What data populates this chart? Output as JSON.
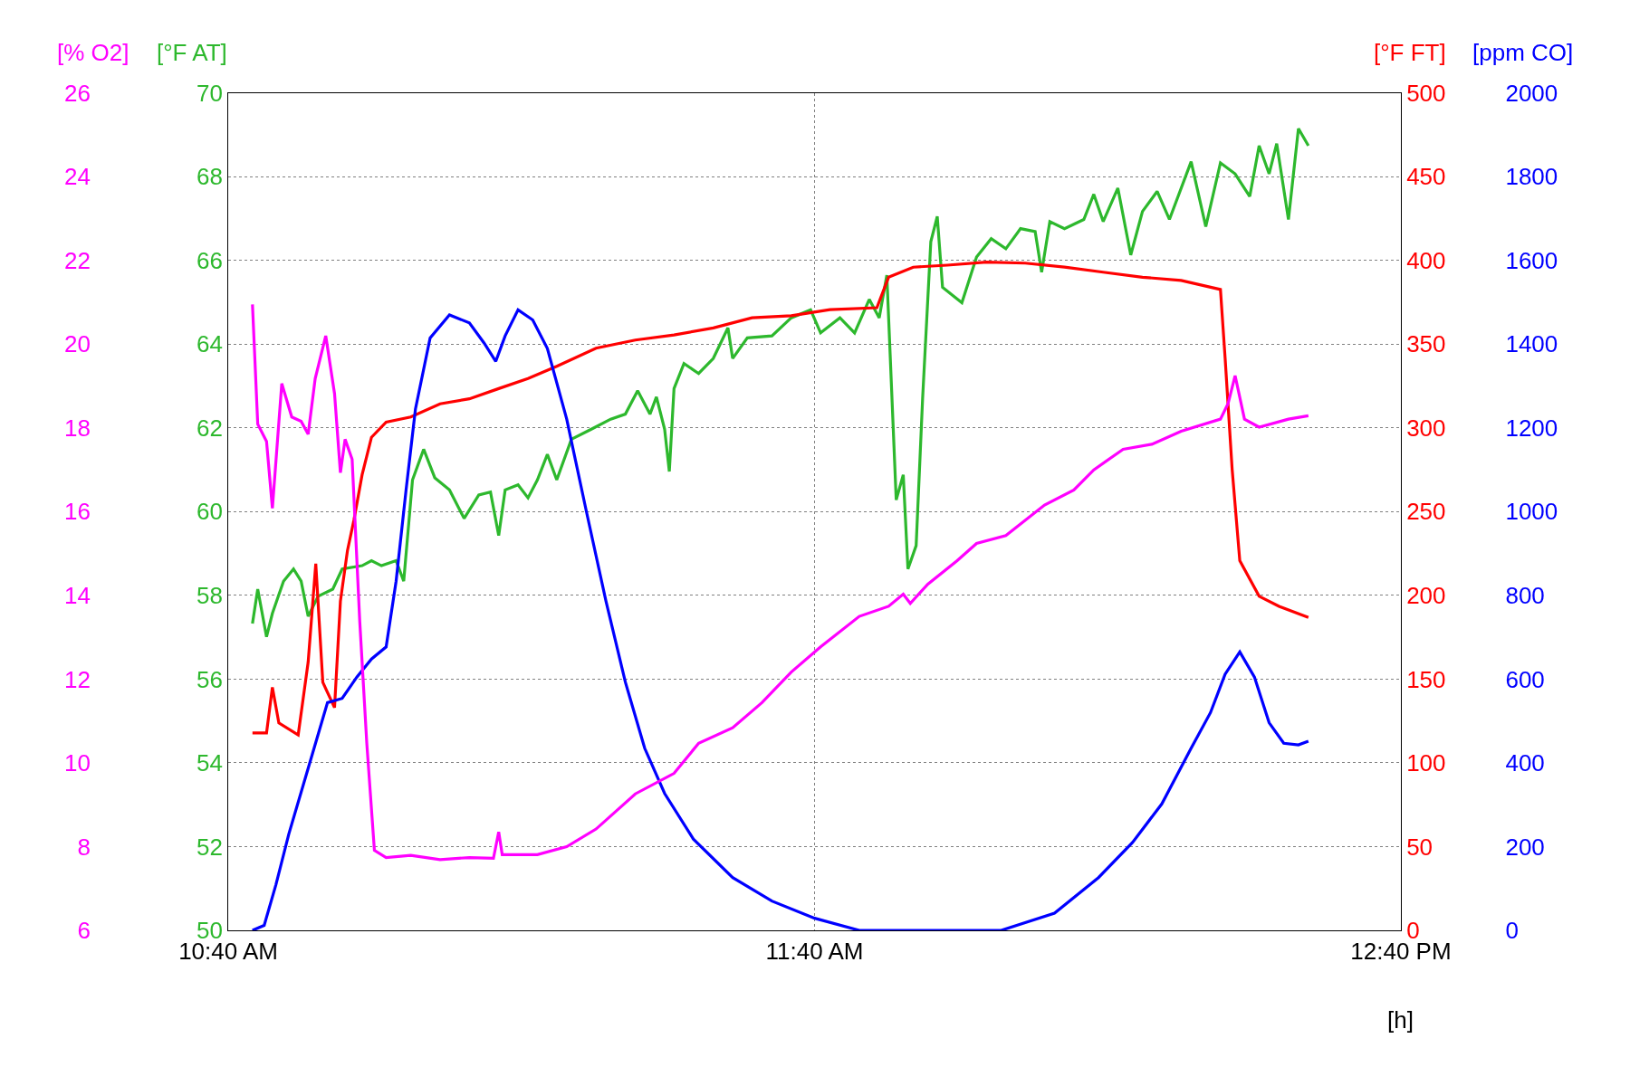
{
  "chart_data": [
    {
      "type": "line",
      "xlabel": "[h]",
      "ylabel": "[°F AT]",
      "y2label": "[°F FT]",
      "y3label": "[ppm CO]",
      "xlim": [
        10.6667,
        12.6667
      ],
      "xticks": [
        {
          "value": 10.6667,
          "label": "10:40 AM"
        },
        {
          "value": 11.6667,
          "label": "11:40 AM"
        },
        {
          "value": 12.6667,
          "label": "12:40 PM"
        }
      ],
      "ylim": [
        50,
        70
      ],
      "yticks": [
        50,
        52,
        54,
        56,
        58,
        60,
        62,
        64,
        66,
        68,
        70
      ],
      "y2lim": [
        0,
        500
      ],
      "y2ticks": [
        0,
        50,
        100,
        150,
        200,
        250,
        300,
        350,
        400,
        450,
        500
      ],
      "y3lim": [
        0,
        2000
      ],
      "y3ticks": [
        0,
        200,
        400,
        600,
        800,
        1000,
        1200,
        1400,
        1600,
        1800,
        2000
      ],
      "grid": true,
      "marker": "none",
      "line_style": "solid",
      "series": [
        {
          "color": "#2db82d",
          "x": [
            10.708,
            10.717,
            10.732,
            10.742,
            10.761,
            10.778,
            10.791,
            10.803,
            10.82,
            10.845,
            10.861,
            10.895,
            10.911,
            10.928,
            10.953,
            10.966,
            10.981,
            11.0,
            11.019,
            11.044,
            11.069,
            11.094,
            11.114,
            11.128,
            11.139,
            11.161,
            11.178,
            11.194,
            11.211,
            11.227,
            11.252,
            11.286,
            11.319,
            11.344,
            11.365,
            11.386,
            11.397,
            11.411,
            11.419,
            11.427,
            11.444,
            11.469,
            11.494,
            11.519,
            11.527,
            11.552,
            11.594,
            11.627,
            11.66,
            11.677,
            11.71,
            11.735,
            11.76,
            11.777,
            11.79,
            11.806,
            11.818,
            11.826,
            11.84,
            11.851,
            11.865,
            11.876,
            11.885,
            11.918,
            11.943,
            11.968,
            11.993,
            12.018,
            12.043,
            12.054,
            12.068,
            12.093,
            12.126,
            12.143,
            12.159,
            12.184,
            12.206,
            12.226,
            12.251,
            12.272,
            12.309,
            12.334,
            12.359,
            12.384,
            12.409,
            12.425,
            12.442,
            12.455,
            12.475,
            12.492,
            12.509
          ],
          "values": [
            57.33,
            58.15,
            57.01,
            57.57,
            58.34,
            58.63,
            58.34,
            57.5,
            57.98,
            58.15,
            58.63,
            58.71,
            58.83,
            58.71,
            58.83,
            58.34,
            60.76,
            61.49,
            60.81,
            60.52,
            59.84,
            60.4,
            60.47,
            59.43,
            60.52,
            60.64,
            60.33,
            60.76,
            61.37,
            60.76,
            61.73,
            61.97,
            62.21,
            62.33,
            62.89,
            62.33,
            62.74,
            61.97,
            60.96,
            62.94,
            63.54,
            63.3,
            63.66,
            64.39,
            63.66,
            64.15,
            64.2,
            64.63,
            64.82,
            64.27,
            64.63,
            64.27,
            65.07,
            64.63,
            65.65,
            60.28,
            60.88,
            58.63,
            59.19,
            62.7,
            66.45,
            67.05,
            65.36,
            64.99,
            66.08,
            66.52,
            66.28,
            66.76,
            66.69,
            65.72,
            66.93,
            66.76,
            66.98,
            67.58,
            66.93,
            67.73,
            66.13,
            67.17,
            67.65,
            66.98,
            68.36,
            66.81,
            68.33,
            68.07,
            67.53,
            68.74,
            68.07,
            68.79,
            66.98,
            69.15,
            68.74
          ]
        },
        {
          "axis": "y2",
          "color": "#ff0000",
          "x": [
            10.708,
            10.732,
            10.742,
            10.753,
            10.786,
            10.803,
            10.816,
            10.828,
            10.848,
            10.858,
            10.87,
            10.881,
            10.895,
            10.911,
            10.936,
            10.978,
            11.028,
            11.078,
            11.128,
            11.178,
            11.227,
            11.294,
            11.361,
            11.427,
            11.494,
            11.56,
            11.627,
            11.693,
            11.773,
            11.793,
            11.835,
            11.893,
            11.96,
            12.026,
            12.093,
            12.159,
            12.226,
            12.292,
            12.359,
            12.367,
            12.379,
            12.392,
            12.425,
            12.459,
            12.509
          ],
          "values": [
            117.9,
            117.9,
            145.1,
            123.9,
            116.7,
            160.2,
            218.9,
            148.1,
            133,
            196.5,
            226.7,
            244.9,
            272,
            294.4,
            303.5,
            306.5,
            314.4,
            317.4,
            323.5,
            329.5,
            336.8,
            347.6,
            352.5,
            355.5,
            359.7,
            365.8,
            367,
            370.6,
            371.8,
            390,
            396,
            397.2,
            399,
            398.4,
            396,
            393,
            390,
            388.1,
            382.7,
            341.6,
            275.1,
            220.7,
            199.5,
            193.5,
            186.8
          ]
        },
        {
          "axis": "y3",
          "color": "#0000ff",
          "x": [
            10.708,
            10.728,
            10.748,
            10.77,
            10.803,
            10.836,
            10.861,
            10.886,
            10.911,
            10.936,
            10.953,
            10.97,
            10.986,
            11.011,
            11.044,
            11.078,
            11.103,
            11.123,
            11.139,
            11.161,
            11.186,
            11.211,
            11.244,
            11.277,
            11.311,
            11.344,
            11.377,
            11.411,
            11.46,
            11.527,
            11.594,
            11.667,
            11.743,
            11.985,
            12.076,
            12.151,
            12.209,
            12.259,
            12.309,
            12.342,
            12.367,
            12.392,
            12.417,
            12.442,
            12.467,
            12.492,
            12.509
          ],
          "values": [
            0,
            12,
            109,
            230,
            387,
            544,
            554,
            605,
            648,
            677,
            834,
            1052,
            1245,
            1415,
            1470,
            1451,
            1403,
            1359,
            1420,
            1482,
            1458,
            1390,
            1221,
            1004,
            786,
            593,
            435,
            327,
            218,
            126,
            70,
            29,
            0,
            0,
            41,
            126,
            210,
            302,
            435,
            520,
            612,
            665,
            605,
            496,
            447,
            443,
            452
          ]
        }
      ]
    },
    {
      "type": "line",
      "ylabel": "[% O2]",
      "tick_labels": "y",
      "xlim": [
        10.6667,
        12.6667
      ],
      "ylim": [
        6,
        26
      ],
      "yticks": [
        6,
        8,
        10,
        12,
        14,
        16,
        18,
        20,
        22,
        24,
        26
      ],
      "marker": "none",
      "line_style": "solid",
      "series": [
        {
          "color": "#ff00ff",
          "x": [
            10.708,
            10.717,
            10.732,
            10.742,
            10.758,
            10.775,
            10.791,
            10.803,
            10.815,
            10.833,
            10.848,
            10.858,
            10.866,
            10.878,
            10.891,
            10.903,
            10.916,
            10.936,
            10.978,
            11.028,
            11.078,
            11.119,
            11.128,
            11.134,
            11.194,
            11.244,
            11.294,
            11.361,
            11.427,
            11.469,
            11.527,
            11.577,
            11.627,
            11.677,
            11.743,
            11.793,
            11.818,
            11.83,
            11.86,
            11.91,
            11.943,
            11.993,
            12.059,
            12.109,
            12.143,
            12.193,
            12.242,
            12.292,
            12.359,
            12.372,
            12.384,
            12.4,
            12.425,
            12.475,
            12.509
          ],
          "values": [
            20.95,
            18.09,
            17.68,
            16.08,
            19.06,
            18.26,
            18.16,
            17.85,
            19.18,
            20.2,
            18.82,
            16.93,
            17.73,
            17.25,
            13.38,
            10.47,
            7.91,
            7.74,
            7.79,
            7.69,
            7.74,
            7.72,
            8.35,
            7.81,
            7.81,
            8.0,
            8.42,
            9.26,
            9.75,
            10.47,
            10.84,
            11.44,
            12.17,
            12.77,
            13.5,
            13.74,
            14.03,
            13.81,
            14.27,
            14.83,
            15.24,
            15.43,
            16.16,
            16.52,
            17.0,
            17.49,
            17.61,
            17.92,
            18.21,
            18.58,
            19.25,
            18.21,
            18.02,
            18.21,
            18.29
          ]
        }
      ]
    }
  ]
}
